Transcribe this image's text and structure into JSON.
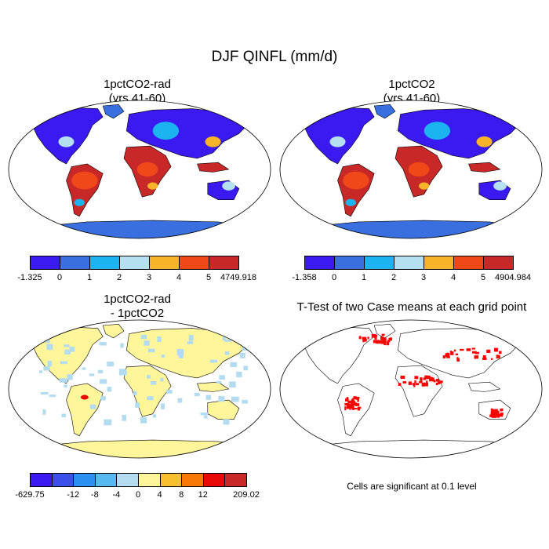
{
  "title": "DJF QINFL (mm/d)",
  "panels": [
    {
      "title_line1": "1pctCO2-rad",
      "title_line2": "(yrs 41-60)"
    },
    {
      "title_line1": "1pctCO2",
      "title_line2": "(yrs 41-60)"
    },
    {
      "title_line1": "1pctCO2-rad",
      "title_line2": "- 1pctCO2"
    },
    {
      "title_line1": "T-Test of two Case means at each grid point",
      "title_line2": ""
    }
  ],
  "note": "Cells are significant at 0.1 level",
  "chart_data": [
    {
      "type": "heatmap",
      "title": "1pctCO2-rad (yrs 41-60)",
      "colorbar": {
        "labels": [
          "-1.325",
          "0",
          "1",
          "2",
          "3",
          "4",
          "5",
          "4749.918"
        ],
        "colors": [
          "#3a1af0",
          "#3a6fe0",
          "#1bb4f0",
          "#b4e0f0",
          "#f8b428",
          "#f04818",
          "#c82828"
        ]
      }
    },
    {
      "type": "heatmap",
      "title": "1pctCO2 (yrs 41-60)",
      "colorbar": {
        "labels": [
          "-1.358",
          "0",
          "1",
          "2",
          "3",
          "4",
          "5",
          "4904.984"
        ],
        "colors": [
          "#3a1af0",
          "#3a6fe0",
          "#1bb4f0",
          "#b4e0f0",
          "#f8b428",
          "#f04818",
          "#c82828"
        ]
      }
    },
    {
      "type": "heatmap",
      "title": "1pctCO2-rad - 1pctCO2",
      "colorbar": {
        "labels": [
          "-629.75",
          "",
          "-12",
          "-8",
          "-4",
          "0",
          "4",
          "8",
          "12",
          "",
          "209.02"
        ],
        "colors": [
          "#3a1af0",
          "#3a50e8",
          "#2a8ff0",
          "#58b8f0",
          "#b4dcf0",
          "#fff59a",
          "#f8c030",
          "#f87808",
          "#e80808",
          "#c82828"
        ]
      }
    },
    {
      "type": "heatmap",
      "title": "T-Test of two Case means at each grid point",
      "significance_color": "#ff0000"
    }
  ]
}
